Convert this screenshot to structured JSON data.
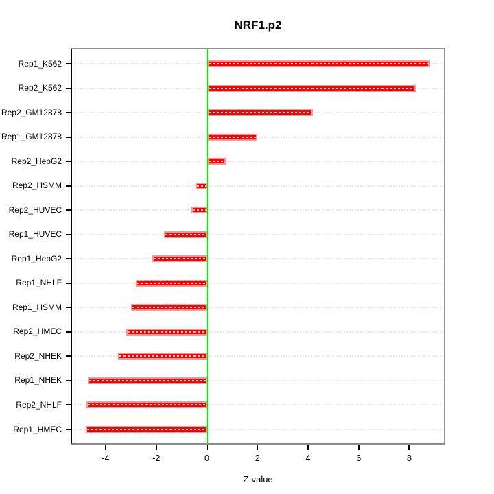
{
  "figure": {
    "title": "NRF1.p2",
    "xlabel": "Z-value"
  },
  "chart_data": {
    "type": "bar",
    "orientation": "horizontal",
    "title": "NRF1.p2",
    "xlabel": "Z-value",
    "ylabel": "",
    "categories": [
      "Rep1_K562",
      "Rep2_K562",
      "Rep2_GM12878",
      "Rep1_GM12878",
      "Rep2_HepG2",
      "Rep2_HSMM",
      "Rep2_HUVEC",
      "Rep1_HUVEC",
      "Rep1_HepG2",
      "Rep1_NHLF",
      "Rep1_HSMM",
      "Rep2_HMEC",
      "Rep2_NHEK",
      "Rep1_NHEK",
      "Rep2_NHLF",
      "Rep1_HMEC"
    ],
    "values": [
      8.8,
      8.25,
      4.2,
      2.0,
      0.75,
      -0.45,
      -0.6,
      -1.7,
      -2.15,
      -2.8,
      -3.0,
      -3.2,
      -3.5,
      -4.7,
      -4.75,
      -4.8
    ],
    "x_ticks": [
      -4,
      -2,
      0,
      2,
      4,
      6,
      8
    ],
    "xlim": [
      -5.33,
      9.37
    ],
    "zero_line_at": 0,
    "grid": "dashed-horizontal-per-bar",
    "legend": "none",
    "colors": {
      "bar_fill": "#ff0000",
      "bar_border": "#ff9999",
      "bar_center_dashes": "#ffffff",
      "gridline": "#e7e7e7",
      "zero_line": "#00ee00",
      "plot_border": "#969696",
      "axis_line": "#000000",
      "text": "#000000",
      "background": "#ffffff"
    }
  }
}
